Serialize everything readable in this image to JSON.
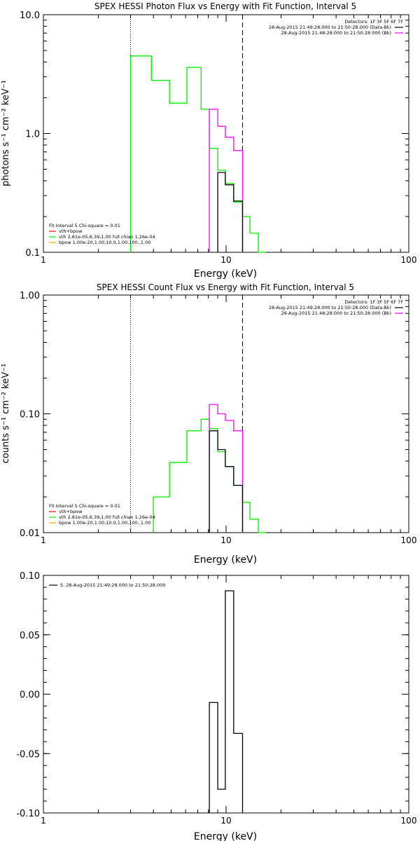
{
  "colors": {
    "background": "#ffffff",
    "axes": "#000000",
    "total": "#000000",
    "data": "#ff00ff",
    "vth": "#00ee00",
    "bpow": "#ffa500"
  },
  "chart_data": [
    {
      "type": "line",
      "title": "SPEX HESSI Photon Flux vs Energy with Fit Function, Interval 5",
      "xlabel": "Energy (keV)",
      "ylabel": "photons s⁻¹ cm⁻² keV⁻¹",
      "x_scale": "log",
      "y_scale": "log",
      "xlim": [
        1,
        100
      ],
      "ylim": [
        0.1,
        10
      ],
      "x_ticks": [
        1,
        10,
        100
      ],
      "x_tick_labels": [
        "1",
        "10",
        "100"
      ],
      "y_ticks": [
        0.1,
        1,
        10
      ],
      "y_tick_labels": [
        "0.1",
        "1.0",
        "10.0"
      ],
      "grid": false,
      "legend_placement": "top-right",
      "legend_lines": [
        {
          "text": "Detectors: 1F 3F 5F 6F 7F",
          "color": "#000000"
        },
        {
          "text": "28-Aug-2015 21:49:28.000 to 21:50:28.000 (Data-Bk)",
          "color": "#000000"
        },
        {
          "text": "28-Aug-2015 21:48:28.000 to 21:50:28.000 (Bk)",
          "color": "#ff00ff"
        }
      ],
      "fit_legend_placement": "bottom-left",
      "fit_legend": [
        {
          "text": "Fit Interval 5   Chi-square = 0.01",
          "color": "#000000"
        },
        {
          "text": "vth+bpow",
          "color": "#ff0000"
        },
        {
          "text": "vth 2.81e-05,6.39,1.00  full chian 1.26e-04",
          "color": "#00ee00"
        },
        {
          "text": "bpow 1.00e-20,1.00,10.0,1.00,100.,1.00",
          "color": "#ffa500"
        }
      ],
      "vlines": [
        {
          "x": 3.0,
          "style": "dotted"
        },
        {
          "x": 12.3,
          "style": "dashed"
        }
      ],
      "series": [
        {
          "color": "#00ee00",
          "steps": [
            {
              "x0": 3.0,
              "x1": 3.9,
              "y": 4.5
            },
            {
              "x0": 3.9,
              "x1": 4.9,
              "y": 2.8
            },
            {
              "x0": 4.9,
              "x1": 6.1,
              "y": 1.8
            },
            {
              "x0": 6.1,
              "x1": 7.3,
              "y": 3.6
            },
            {
              "x0": 7.3,
              "x1": 8.1,
              "y": 1.6
            },
            {
              "x0": 8.1,
              "x1": 9.0,
              "y": 0.75
            },
            {
              "x0": 9.0,
              "x1": 9.9,
              "y": 0.49
            },
            {
              "x0": 9.9,
              "x1": 11.0,
              "y": 0.38
            },
            {
              "x0": 11.0,
              "x1": 12.3,
              "y": 0.265
            },
            {
              "x0": 12.3,
              "x1": 13.5,
              "y": 0.2
            },
            {
              "x0": 13.5,
              "x1": 15.0,
              "y": 0.145
            },
            {
              "x0": 15.0,
              "x1": 16.5,
              "y": 0.1
            }
          ]
        },
        {
          "color": "#ff00ff",
          "steps": [
            {
              "x0": 8.1,
              "x1": 9.0,
              "y": 1.6
            },
            {
              "x0": 9.0,
              "x1": 9.9,
              "y": 1.15
            },
            {
              "x0": 9.9,
              "x1": 11.0,
              "y": 0.93
            },
            {
              "x0": 11.0,
              "x1": 12.3,
              "y": 0.72
            }
          ]
        },
        {
          "color": "#000000",
          "steps": [
            {
              "x0": 9.0,
              "x1": 9.9,
              "y": 0.47
            },
            {
              "x0": 9.9,
              "x1": 11.0,
              "y": 0.37
            },
            {
              "x0": 11.0,
              "x1": 12.3,
              "y": 0.27
            }
          ]
        }
      ]
    },
    {
      "type": "line",
      "title": "SPEX HESSI Count Flux vs Energy with Fit Function, Interval 5",
      "xlabel": "Energy (keV)",
      "ylabel": "counts s⁻¹ cm⁻² keV⁻¹",
      "x_scale": "log",
      "y_scale": "log",
      "xlim": [
        1,
        100
      ],
      "ylim": [
        0.01,
        1
      ],
      "x_ticks": [
        1,
        10,
        100
      ],
      "x_tick_labels": [
        "1",
        "10",
        "100"
      ],
      "y_ticks": [
        0.01,
        0.1,
        1
      ],
      "y_tick_labels": [
        "0.01",
        "0.10",
        "1.00"
      ],
      "grid": false,
      "legend_placement": "top-right",
      "legend_lines": [
        {
          "text": "Detectors: 1F 3F 5F 6F 7F",
          "color": "#000000"
        },
        {
          "text": "28-Aug-2015 21:49:28.000 to 21:50:28.000 (Data-Bk)",
          "color": "#000000"
        },
        {
          "text": "28-Aug-2015 21:48:28.000 to 21:50:28.000 (Bk)",
          "color": "#ff00ff"
        }
      ],
      "fit_legend_placement": "bottom-left",
      "fit_legend": [
        {
          "text": "Fit Interval 5   Chi-square = 0.01",
          "color": "#000000"
        },
        {
          "text": "vth+bpow",
          "color": "#ff0000"
        },
        {
          "text": "vth 2.81e-05,6.39,1.00  full chian 1.26e-04",
          "color": "#00ee00"
        },
        {
          "text": "bpow 1.00e-20,1.00,10.0,1.00,100.,1.00",
          "color": "#ffa500"
        }
      ],
      "vlines": [
        {
          "x": 3.0,
          "style": "dotted"
        },
        {
          "x": 12.3,
          "style": "dashed"
        }
      ],
      "series": [
        {
          "color": "#00ee00",
          "steps": [
            {
              "x0": 4.0,
              "x1": 4.9,
              "y": 0.02
            },
            {
              "x0": 4.9,
              "x1": 6.1,
              "y": 0.039
            },
            {
              "x0": 6.1,
              "x1": 7.3,
              "y": 0.072
            },
            {
              "x0": 7.3,
              "x1": 8.1,
              "y": 0.09
            },
            {
              "x0": 8.1,
              "x1": 9.0,
              "y": 0.075
            },
            {
              "x0": 9.0,
              "x1": 9.9,
              "y": 0.048
            },
            {
              "x0": 9.9,
              "x1": 11.0,
              "y": 0.036
            },
            {
              "x0": 11.0,
              "x1": 12.3,
              "y": 0.025
            },
            {
              "x0": 12.3,
              "x1": 13.5,
              "y": 0.018
            },
            {
              "x0": 13.5,
              "x1": 15.0,
              "y": 0.013
            },
            {
              "x0": 15.0,
              "x1": 16.5,
              "y": 0.01
            }
          ]
        },
        {
          "color": "#ff00ff",
          "steps": [
            {
              "x0": 8.1,
              "x1": 9.0,
              "y": 0.12
            },
            {
              "x0": 9.0,
              "x1": 9.9,
              "y": 0.1
            },
            {
              "x0": 9.9,
              "x1": 11.0,
              "y": 0.088
            },
            {
              "x0": 11.0,
              "x1": 12.3,
              "y": 0.072
            }
          ]
        },
        {
          "color": "#000000",
          "steps": [
            {
              "x0": 8.1,
              "x1": 9.0,
              "y": 0.072
            },
            {
              "x0": 9.0,
              "x1": 9.9,
              "y": 0.05
            },
            {
              "x0": 9.9,
              "x1": 11.0,
              "y": 0.036
            },
            {
              "x0": 11.0,
              "x1": 12.3,
              "y": 0.025
            }
          ]
        }
      ]
    },
    {
      "type": "line",
      "title": "",
      "xlabel": "Energy (keV)",
      "ylabel": "",
      "x_scale": "log",
      "y_scale": "linear",
      "xlim": [
        1,
        100
      ],
      "ylim": [
        -0.1,
        0.1
      ],
      "x_ticks": [
        1,
        10,
        100
      ],
      "x_tick_labels": [
        "1",
        "10",
        "100"
      ],
      "y_ticks": [
        -0.1,
        -0.05,
        0,
        0.05,
        0.1
      ],
      "y_tick_labels": [
        "-0.10",
        "-0.05",
        "0.00",
        "0.05",
        "0.10"
      ],
      "grid": false,
      "legend_placement": "top-left",
      "legend_lines": [
        {
          "text": "5. 28-Aug-2015 21:49:28.000 to 21:50:28.000",
          "color": "#000000"
        }
      ],
      "series": [
        {
          "color": "#000000",
          "steps": [
            {
              "x0": 8.1,
              "x1": 9.0,
              "y": -0.007
            },
            {
              "x0": 9.0,
              "x1": 9.9,
              "y": -0.08
            },
            {
              "x0": 9.9,
              "x1": 11.0,
              "y": 0.087
            },
            {
              "x0": 11.0,
              "x1": 12.3,
              "y": -0.033
            }
          ]
        }
      ]
    }
  ]
}
